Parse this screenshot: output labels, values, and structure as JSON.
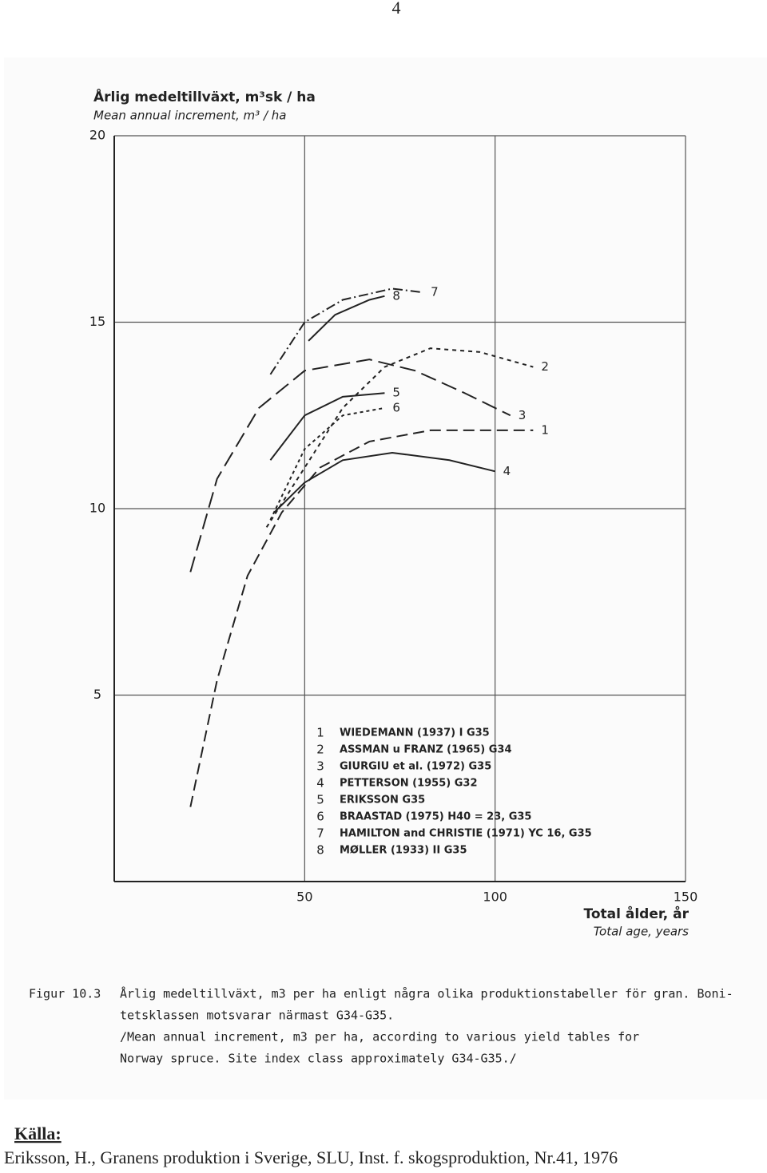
{
  "page_number": "4",
  "chart_data": {
    "type": "line",
    "y_label_sv": "Årlig medeltillväxt, m³sk / ha",
    "y_label_en": "Mean annual increment, m³ / ha",
    "x_label_sv": "Total ålder, år",
    "x_label_en": "Total age, years",
    "xlim": [
      0,
      150
    ],
    "xticks": [
      50,
      100,
      150
    ],
    "ylim": [
      0,
      20
    ],
    "yticks": [
      5,
      10,
      15,
      20
    ],
    "grid": true,
    "series": [
      {
        "name": "1",
        "legend": "WIEDEMANN  (1937)  I  G35",
        "color": "#222",
        "dash": "14 7",
        "x": [
          20,
          27,
          35,
          44,
          54,
          67,
          83,
          100,
          110
        ],
        "values": [
          2.0,
          5.4,
          8.2,
          9.9,
          11.1,
          11.8,
          12.1,
          12.1,
          12.1
        ]
      },
      {
        "name": "2",
        "legend": "ASSMAN  u  FRANZ  (1965)  G34",
        "color": "#222",
        "dash": "5 5",
        "x": [
          40,
          50,
          60,
          71,
          83,
          96,
          110
        ],
        "values": [
          9.5,
          11.1,
          12.7,
          13.8,
          14.3,
          14.2,
          13.8
        ]
      },
      {
        "name": "3",
        "legend": "GIURGIU  et  al. (1972)  G35",
        "color": "#222",
        "dash": "20 8",
        "x": [
          20,
          27,
          38,
          50,
          67,
          79,
          92,
          104
        ],
        "values": [
          8.3,
          10.8,
          12.7,
          13.7,
          14.0,
          13.7,
          13.1,
          12.5
        ]
      },
      {
        "name": "4",
        "legend": "PETTERSON  (1955)  G32",
        "color": "#222",
        "dash": "none",
        "x": [
          42,
          50,
          60,
          73,
          88,
          100
        ],
        "values": [
          9.9,
          10.7,
          11.3,
          11.5,
          11.3,
          11.0
        ]
      },
      {
        "name": "5",
        "legend": "ERIKSSON  G35",
        "color": "#222",
        "dash": "none",
        "x": [
          41,
          50,
          60,
          71
        ],
        "values": [
          11.3,
          12.5,
          13.0,
          13.1
        ]
      },
      {
        "name": "6",
        "legend": "BRAASTAD  (1975)  H40 = 23,  G35",
        "color": "#222",
        "dash": "4 4",
        "x": [
          41,
          50,
          60,
          71
        ],
        "values": [
          9.7,
          11.6,
          12.5,
          12.7
        ]
      },
      {
        "name": "7",
        "legend": "HAMILTON  and  CHRISTIE  (1971)  YC 16,  G35",
        "color": "#222",
        "dash": "12 4 2 4",
        "x": [
          41,
          50,
          60,
          73,
          81
        ],
        "values": [
          13.6,
          15.0,
          15.6,
          15.9,
          15.8
        ]
      },
      {
        "name": "8",
        "legend": "MØLLER  (1933)  II  G35",
        "color": "#222",
        "dash": "none",
        "x": [
          51,
          58,
          67,
          71
        ],
        "values": [
          14.5,
          15.2,
          15.6,
          15.7
        ]
      }
    ]
  },
  "caption": {
    "label": "Figur 10.3",
    "lines": [
      "Årlig medeltillväxt, m3 per ha enligt några olika produktionstabeller för gran. Boni-",
      "tetsklassen motsvarar närmast G34-G35.",
      "/Mean annual increment, m3 per ha, according to various yield tables for",
      "Norway spruce. Site index class approximately G34-G35./"
    ]
  },
  "source": {
    "heading": "Källa:",
    "text": "Eriksson, H., Granens produktion i Sverige, SLU, Inst. f. skogsproduktion, Nr.41, 1976"
  }
}
